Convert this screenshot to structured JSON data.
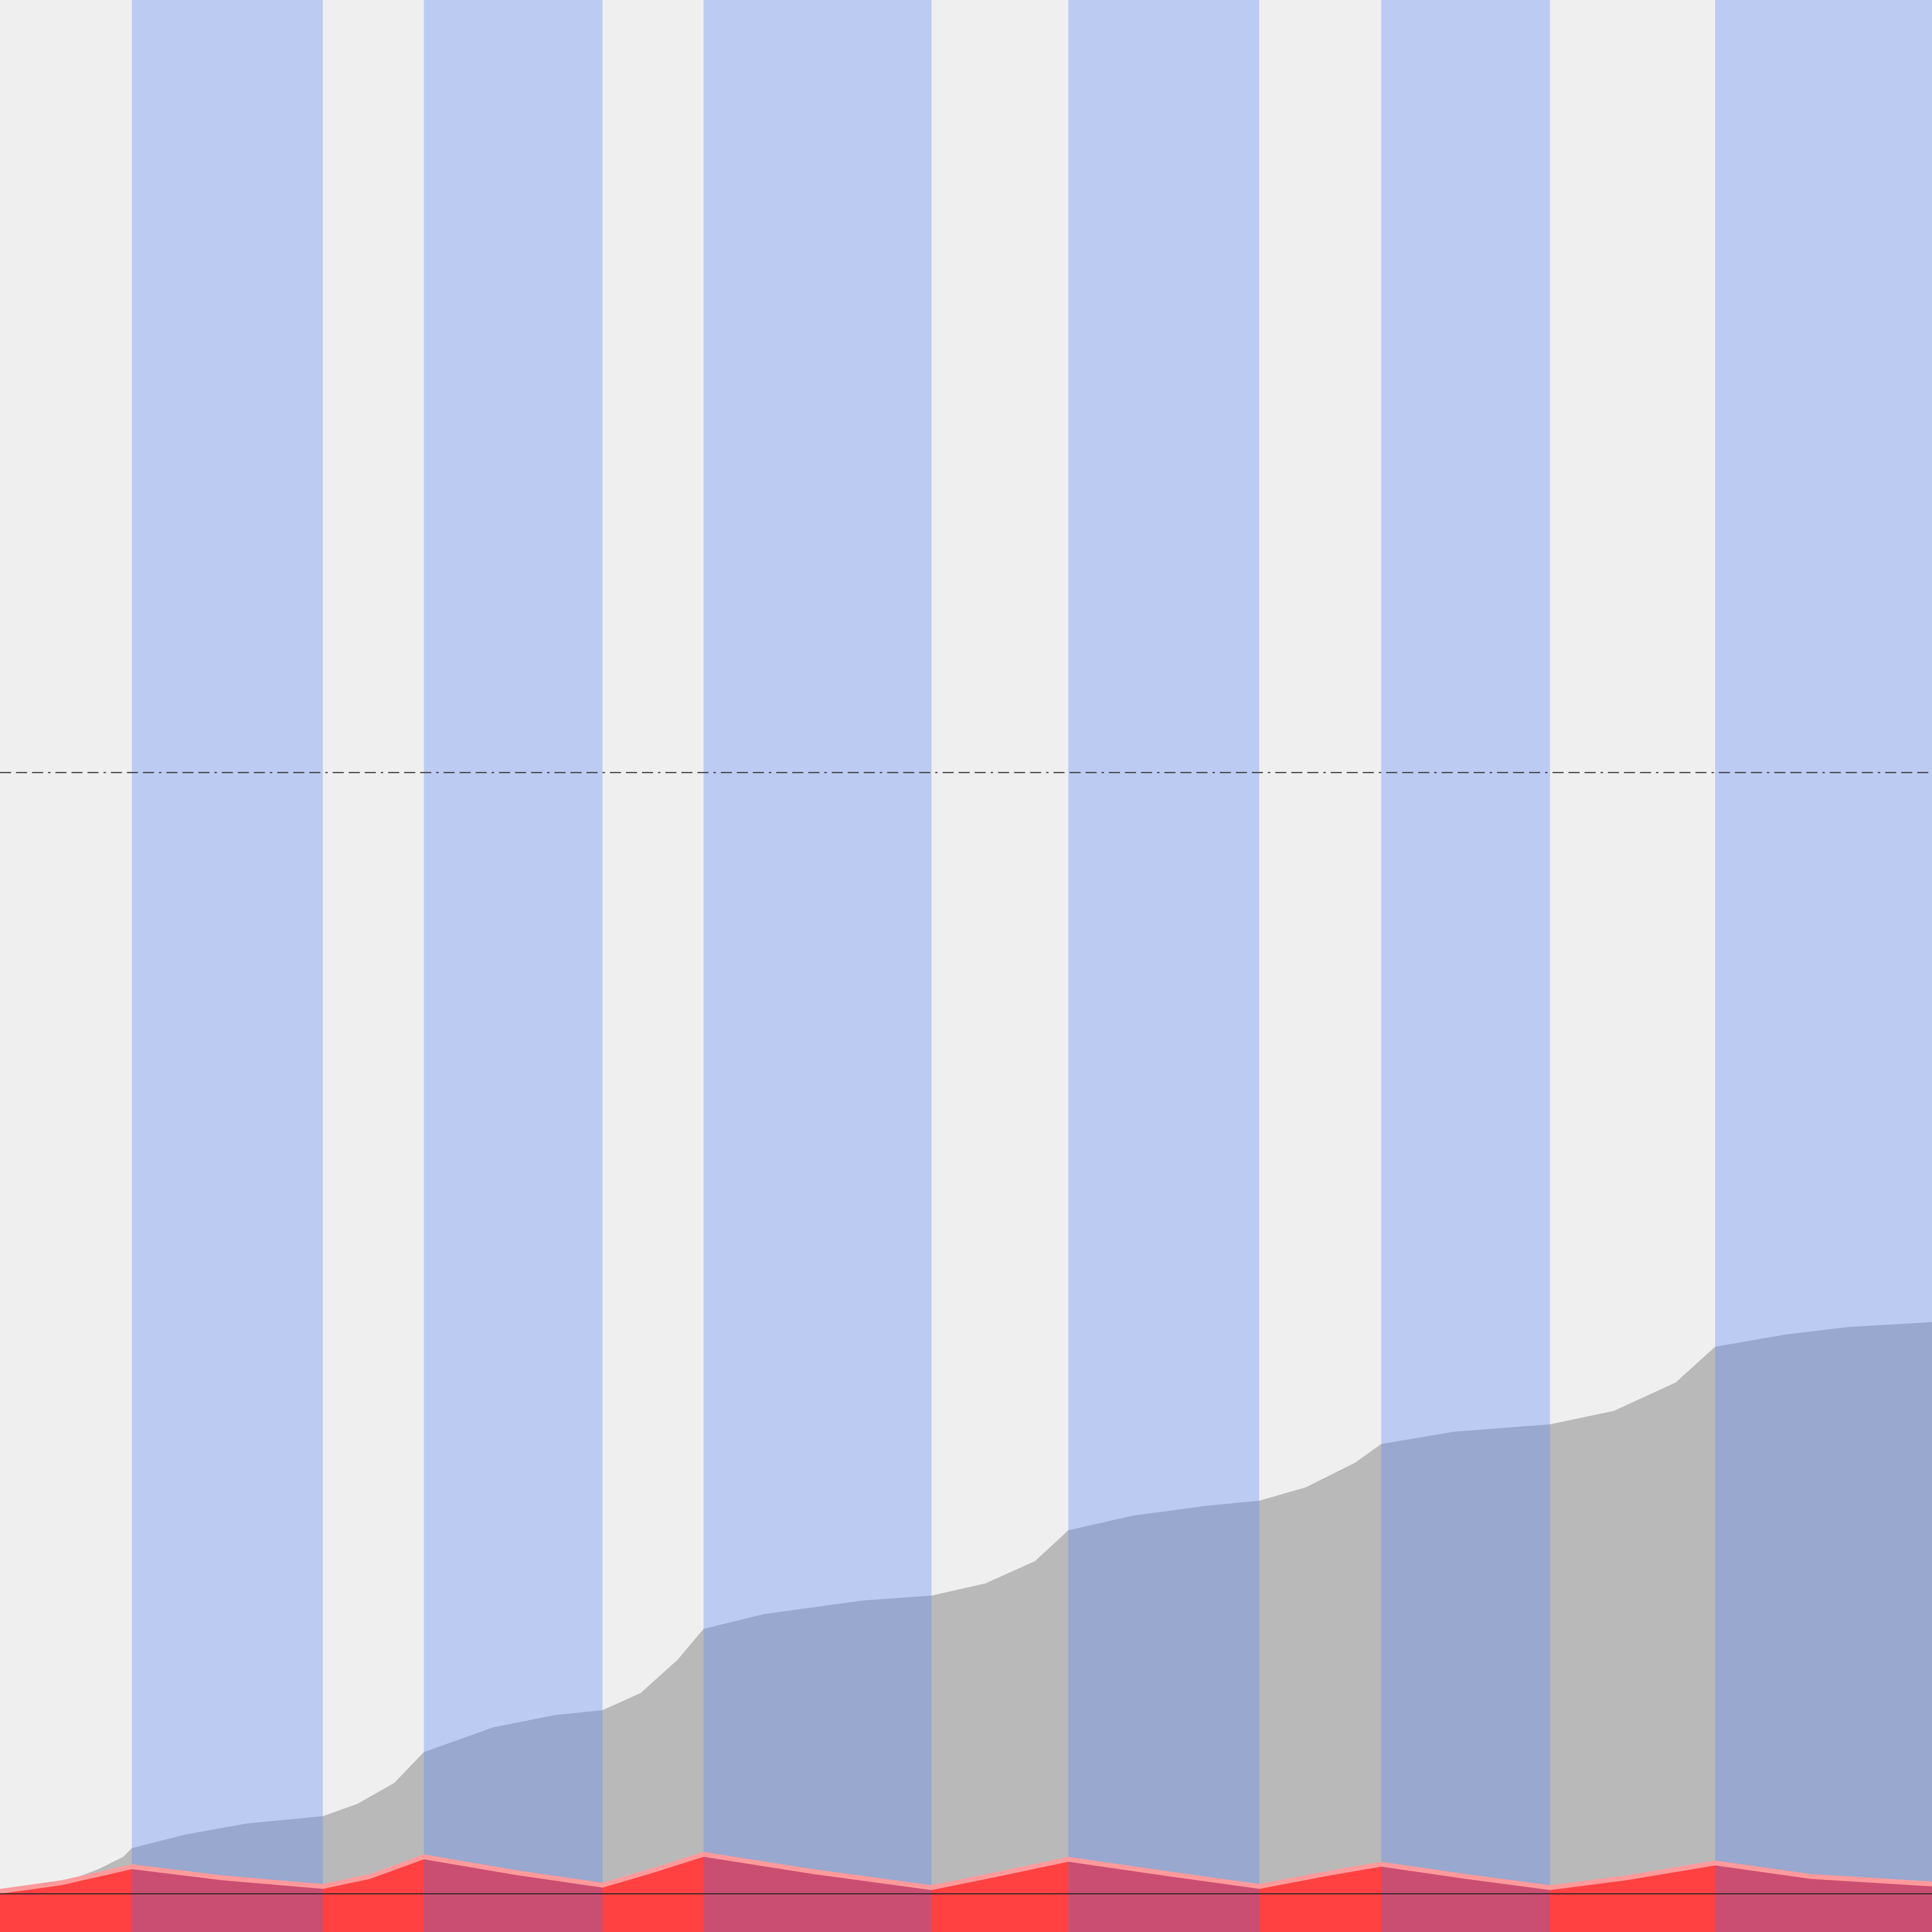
{
  "chart_data": {
    "type": "area",
    "title": "",
    "xlabel": "",
    "ylabel": "",
    "x_range": [
      0,
      1568
    ],
    "y_range": [
      0,
      1537
    ],
    "grid": false,
    "legend": "none",
    "colors": {
      "background": "#efefef",
      "active_band": "#bccbf2",
      "cumulative_fill": "#b9b9b9",
      "cumulative_fill_in_band": "#98a8cf",
      "rate_fill": "#ff4142",
      "rate_fill_in_band": "#ca4e72",
      "rate_fill_edge": "#ff9a9c",
      "threshold_line": "#333333",
      "baseline": "#222222"
    },
    "bands": [
      {
        "start": 107,
        "end": 262
      },
      {
        "start": 344,
        "end": 489
      },
      {
        "start": 571,
        "end": 756
      },
      {
        "start": 867,
        "end": 1022
      },
      {
        "start": 1121,
        "end": 1258
      },
      {
        "start": 1392,
        "end": 1568
      }
    ],
    "threshold": {
      "value": 910,
      "style": "dash-dot"
    },
    "series": [
      {
        "kind": "cumulative",
        "points": [
          [
            0,
            0
          ],
          [
            40,
            5
          ],
          [
            80,
            20
          ],
          [
            100,
            30
          ],
          [
            107,
            37
          ],
          [
            150,
            48
          ],
          [
            200,
            57
          ],
          [
            262,
            63
          ],
          [
            290,
            73
          ],
          [
            320,
            90
          ],
          [
            344,
            115
          ],
          [
            400,
            135
          ],
          [
            450,
            145
          ],
          [
            489,
            149
          ],
          [
            520,
            163
          ],
          [
            550,
            190
          ],
          [
            571,
            215
          ],
          [
            620,
            227
          ],
          [
            700,
            238
          ],
          [
            756,
            242
          ],
          [
            800,
            252
          ],
          [
            840,
            270
          ],
          [
            867,
            295
          ],
          [
            920,
            307
          ],
          [
            980,
            315
          ],
          [
            1022,
            319
          ],
          [
            1060,
            330
          ],
          [
            1100,
            350
          ],
          [
            1121,
            365
          ],
          [
            1180,
            375
          ],
          [
            1258,
            381
          ],
          [
            1310,
            392
          ],
          [
            1360,
            415
          ],
          [
            1392,
            444
          ],
          [
            1450,
            454
          ],
          [
            1500,
            460
          ],
          [
            1568,
            464
          ]
        ]
      },
      {
        "kind": "rate",
        "points": [
          [
            0,
            0
          ],
          [
            50,
            7
          ],
          [
            107,
            20
          ],
          [
            180,
            11
          ],
          [
            262,
            4
          ],
          [
            300,
            12
          ],
          [
            344,
            28
          ],
          [
            420,
            15
          ],
          [
            489,
            5
          ],
          [
            530,
            17
          ],
          [
            571,
            30
          ],
          [
            660,
            16
          ],
          [
            756,
            3
          ],
          [
            810,
            14
          ],
          [
            867,
            26
          ],
          [
            950,
            14
          ],
          [
            1022,
            4
          ],
          [
            1080,
            15
          ],
          [
            1121,
            22
          ],
          [
            1190,
            12
          ],
          [
            1258,
            3
          ],
          [
            1320,
            11
          ],
          [
            1392,
            23
          ],
          [
            1470,
            12
          ],
          [
            1568,
            6
          ]
        ]
      }
    ]
  }
}
